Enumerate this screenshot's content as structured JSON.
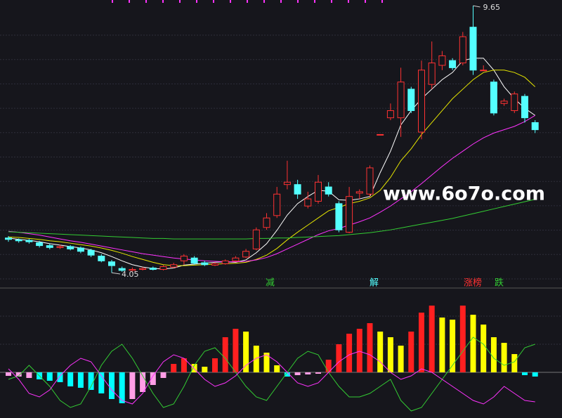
{
  "chart_data": {
    "type": "candlestick",
    "watermark": "www.6o7o.com",
    "ylim": [
      3.73,
      9.77
    ],
    "up_color": "#ff3232",
    "down_color": "#54ffff",
    "open": [
      4.78,
      4.74,
      4.73,
      4.68,
      4.62,
      4.58,
      4.6,
      4.57,
      4.52,
      4.4,
      4.28,
      4.14,
      4.1,
      4.12,
      4.15,
      4.12,
      4.17,
      4.3,
      4.36,
      4.26,
      4.21,
      4.24,
      4.3,
      4.38,
      4.55,
      5.0,
      5.25,
      5.9,
      5.9,
      5.45,
      5.55,
      5.85,
      5.5,
      4.9,
      5.72,
      5.7,
      6.95,
      7.3,
      7.3,
      7.9,
      7.0,
      8.0,
      8.4,
      8.5,
      8.45,
      9.2,
      8.3,
      8.05,
      7.6,
      7.45,
      7.75,
      7.2
    ],
    "high": [
      4.82,
      4.77,
      4.76,
      4.72,
      4.66,
      4.64,
      4.63,
      4.6,
      4.55,
      4.44,
      4.32,
      4.18,
      4.16,
      4.17,
      4.18,
      4.21,
      4.26,
      4.44,
      4.4,
      4.3,
      4.27,
      4.33,
      4.4,
      4.55,
      5.0,
      5.3,
      5.85,
      6.4,
      6.0,
      5.75,
      6.1,
      5.95,
      5.55,
      5.85,
      5.8,
      6.3,
      6.95,
      7.6,
      8.35,
      7.95,
      8.5,
      8.9,
      8.7,
      8.55,
      9.1,
      9.65,
      8.4,
      8.1,
      7.7,
      7.85,
      7.8,
      7.25
    ],
    "low": [
      4.7,
      4.68,
      4.66,
      4.58,
      4.54,
      4.55,
      4.52,
      4.46,
      4.38,
      4.27,
      4.05,
      4.07,
      4.08,
      4.1,
      4.1,
      4.1,
      4.15,
      4.22,
      4.22,
      4.19,
      4.19,
      4.22,
      4.28,
      4.36,
      4.52,
      4.95,
      5.2,
      5.8,
      5.6,
      5.4,
      5.5,
      5.65,
      4.9,
      4.88,
      5.6,
      5.65,
      6.95,
      7.25,
      6.9,
      7.4,
      6.85,
      7.9,
      8.3,
      8.3,
      8.4,
      8.2,
      8.3,
      7.35,
      7.55,
      7.4,
      7.2,
      6.98
    ],
    "close": [
      4.75,
      4.72,
      4.7,
      4.62,
      4.58,
      4.6,
      4.55,
      4.5,
      4.42,
      4.3,
      4.2,
      4.1,
      4.12,
      4.14,
      4.12,
      4.18,
      4.22,
      4.4,
      4.25,
      4.22,
      4.24,
      4.3,
      4.36,
      4.5,
      4.95,
      5.2,
      5.7,
      5.95,
      5.7,
      5.6,
      5.95,
      5.7,
      4.95,
      5.65,
      5.75,
      6.25,
      6.95,
      7.45,
      8.05,
      7.45,
      8.3,
      8.45,
      8.6,
      8.35,
      9.0,
      8.3,
      8.3,
      7.4,
      7.65,
      7.8,
      7.3,
      7.05
    ],
    "moving_averages": [
      {
        "color": "#ffffff",
        "values": [
          4.78,
          4.75,
          4.73,
          4.7,
          4.66,
          4.63,
          4.6,
          4.57,
          4.53,
          4.47,
          4.39,
          4.3,
          4.22,
          4.17,
          4.14,
          4.13,
          4.15,
          4.21,
          4.23,
          4.25,
          4.27,
          4.28,
          4.27,
          4.32,
          4.47,
          4.66,
          4.94,
          5.26,
          5.5,
          5.65,
          5.78,
          5.76,
          5.58,
          5.57,
          5.6,
          5.65,
          6.15,
          6.6,
          7.15,
          7.45,
          7.7,
          7.9,
          8.1,
          8.25,
          8.5,
          8.55,
          8.55,
          8.3,
          7.95,
          7.7,
          7.5,
          7.35
        ]
      },
      {
        "color": "#e6e600",
        "values": [
          4.8,
          4.79,
          4.77,
          4.75,
          4.72,
          4.7,
          4.67,
          4.64,
          4.61,
          4.57,
          4.52,
          4.46,
          4.39,
          4.33,
          4.27,
          4.22,
          4.2,
          4.2,
          4.21,
          4.22,
          4.23,
          4.24,
          4.25,
          4.27,
          4.33,
          4.42,
          4.56,
          4.74,
          4.9,
          5.05,
          5.2,
          5.35,
          5.42,
          5.5,
          5.55,
          5.62,
          5.78,
          6.05,
          6.4,
          6.65,
          6.95,
          7.2,
          7.45,
          7.7,
          7.9,
          8.1,
          8.25,
          8.3,
          8.3,
          8.25,
          8.15,
          7.95
        ]
      },
      {
        "color": "#ff33ff",
        "values": [
          4.92,
          4.9,
          4.87,
          4.84,
          4.8,
          4.76,
          4.72,
          4.69,
          4.65,
          4.61,
          4.57,
          4.53,
          4.49,
          4.45,
          4.42,
          4.39,
          4.36,
          4.34,
          4.32,
          4.3,
          4.29,
          4.28,
          4.28,
          4.29,
          4.32,
          4.37,
          4.45,
          4.55,
          4.65,
          4.75,
          4.85,
          4.93,
          4.98,
          5.05,
          5.12,
          5.2,
          5.32,
          5.45,
          5.6,
          5.75,
          5.92,
          6.1,
          6.28,
          6.45,
          6.6,
          6.75,
          6.88,
          6.98,
          7.05,
          7.12,
          7.22,
          7.35
        ]
      },
      {
        "color": "#33cc33",
        "values": [
          4.91,
          4.9,
          4.89,
          4.88,
          4.87,
          4.86,
          4.85,
          4.84,
          4.83,
          4.82,
          4.81,
          4.8,
          4.79,
          4.78,
          4.77,
          4.77,
          4.76,
          4.76,
          4.76,
          4.76,
          4.76,
          4.76,
          4.76,
          4.76,
          4.77,
          4.77,
          4.78,
          4.78,
          4.79,
          4.8,
          4.81,
          4.82,
          4.83,
          4.85,
          4.87,
          4.89,
          4.92,
          4.95,
          4.99,
          5.03,
          5.07,
          5.11,
          5.15,
          5.19,
          5.24,
          5.29,
          5.34,
          5.39,
          5.44,
          5.49,
          5.54,
          5.59
        ]
      }
    ],
    "signals": [
      {
        "text": "减",
        "color": "#33cc33"
      },
      {
        "text": "解",
        "color": "#54ffff"
      },
      {
        "text": "涨榜",
        "color": "#ff3232"
      },
      {
        "text": "跌",
        "color": "#33cc33"
      }
    ],
    "indicator": {
      "ylim": [
        -65,
        115
      ],
      "histogram": [
        -5,
        -6,
        -8,
        -10,
        -12,
        -14,
        -20,
        -22,
        -25,
        -30,
        -38,
        -44,
        -38,
        -28,
        -18,
        -8,
        12,
        20,
        12,
        8,
        20,
        50,
        62,
        58,
        38,
        28,
        10,
        -6,
        -4,
        -3,
        -2,
        18,
        40,
        55,
        62,
        70,
        58,
        50,
        38,
        58,
        85,
        95,
        78,
        75,
        95,
        82,
        68,
        50,
        42,
        26,
        -4,
        -6
      ],
      "histogram_colors": [
        "#ff9ee6",
        "#ff9ee6",
        "#ff9ee6",
        "#00ffff",
        "#00ffff",
        "#00ffff",
        "#00ffff",
        "#00ffff",
        "#00ffff",
        "#00ffff",
        "#00ffff",
        "#00ffff",
        "#ff9ee6",
        "#ff9ee6",
        "#ff9ee6",
        "#ff9ee6",
        "#ff2020",
        "#ff2020",
        "#ffff00",
        "#ffff00",
        "#ff2020",
        "#ff2020",
        "#ff2020",
        "#ffff00",
        "#ffff00",
        "#ffff00",
        "#ffff00",
        "#00ffff",
        "#ff9ee6",
        "#ff9ee6",
        "#ff9ee6",
        "#ff2020",
        "#ff2020",
        "#ff2020",
        "#ff2020",
        "#ff2020",
        "#ffff00",
        "#ffff00",
        "#ffff00",
        "#ff2020",
        "#ff2020",
        "#ff2020",
        "#ffff00",
        "#ffff00",
        "#ff2020",
        "#ffff00",
        "#ffff00",
        "#ffff00",
        "#ffff00",
        "#ffff00",
        "#00ffff",
        "#00ffff"
      ],
      "lines": [
        {
          "color": "#33cc33",
          "values": [
            -10,
            -5,
            10,
            -5,
            -20,
            -40,
            -50,
            -45,
            -20,
            10,
            30,
            40,
            20,
            -5,
            -30,
            -50,
            -45,
            -20,
            10,
            30,
            35,
            20,
            0,
            -20,
            -35,
            -40,
            -20,
            0,
            20,
            30,
            25,
            0,
            -20,
            -35,
            -35,
            -30,
            -20,
            -10,
            -40,
            -55,
            -50,
            -30,
            -10,
            10,
            30,
            50,
            40,
            20,
            10,
            15,
            35,
            40
          ]
        },
        {
          "color": "#ff33ff",
          "values": [
            5,
            -10,
            -30,
            -35,
            -25,
            -5,
            10,
            20,
            15,
            -5,
            -25,
            -40,
            -45,
            -30,
            -5,
            15,
            25,
            20,
            5,
            -10,
            -20,
            -15,
            -5,
            10,
            20,
            25,
            15,
            0,
            -15,
            -20,
            -15,
            0,
            15,
            25,
            30,
            25,
            15,
            0,
            -10,
            -5,
            5,
            0,
            -10,
            -20,
            -30,
            -40,
            -45,
            -35,
            -20,
            -30,
            -40,
            -42
          ]
        }
      ]
    }
  }
}
